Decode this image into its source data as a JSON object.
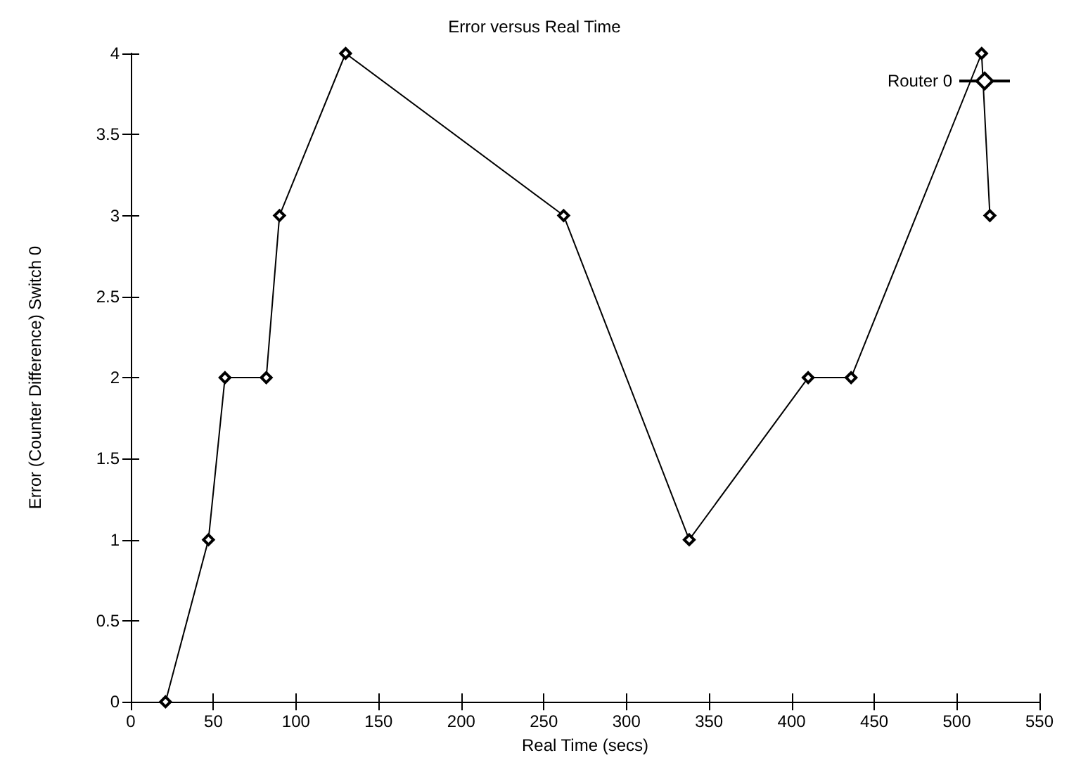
{
  "chart_data": {
    "type": "line",
    "title": "Error versus Real Time",
    "xlabel": "Real Time (secs)",
    "ylabel": "Error (Counter Difference) Switch 0",
    "x": [
      21,
      47,
      57,
      82,
      90,
      130,
      262,
      338,
      410,
      436,
      515,
      520
    ],
    "series": [
      {
        "name": "Router 0",
        "color": "#000000",
        "values": [
          0,
          1,
          2,
          2,
          3,
          4,
          3,
          1,
          2,
          2,
          4,
          3
        ]
      }
    ],
    "xlim": [
      0,
      550
    ],
    "xticks": [
      0,
      50,
      100,
      150,
      200,
      250,
      300,
      350,
      400,
      450,
      500,
      550
    ],
    "ylim": [
      0,
      4
    ],
    "yticks": [
      0,
      0.5,
      1,
      1.5,
      2,
      2.5,
      3,
      3.5,
      4
    ],
    "grid": false,
    "legend": "top right",
    "marker": "diamond",
    "line_style": "solid"
  }
}
